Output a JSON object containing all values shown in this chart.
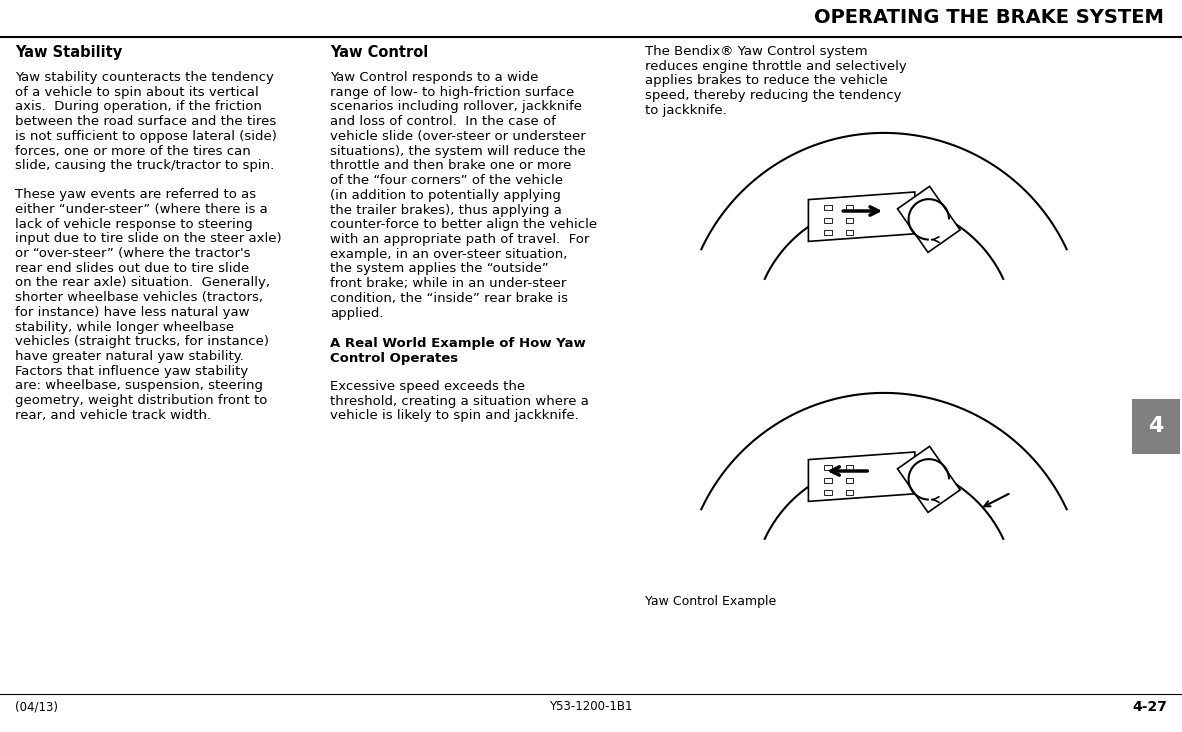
{
  "title": "OPERATING THE BRAKE SYSTEM",
  "background_color": "#ffffff",
  "header_line_color": "#000000",
  "title_color": "#000000",
  "title_fontsize": 14,
  "tab_color": "#808080",
  "tab_text": "4",
  "tab_text_color": "#ffffff",
  "footer_left": "(04/13)",
  "footer_center": "Y53-1200-1B1",
  "footer_right": "4-27",
  "col1_heading": "Yaw Stability",
  "col1_para1": "Yaw stability counteracts the tendency\nof a vehicle to spin about its vertical\naxis.  During operation, if the friction\nbetween the road surface and the tires\nis not sufficient to oppose lateral (side)\nforces, one or more of the tires can\nslide, causing the truck/tractor to spin.",
  "col1_para2": "These yaw events are referred to as\neither “under-steer” (where there is a\nlack of vehicle response to steering\ninput due to tire slide on the steer axle)\nor “over-steer” (where the tractor's\nrear end slides out due to tire slide\non the rear axle) situation.  Generally,\nshorter wheelbase vehicles (tractors,\nfor instance) have less natural yaw\nstability, while longer wheelbase\nvehicles (straight trucks, for instance)\nhave greater natural yaw stability.\nFactors that influence yaw stability\nare: wheelbase, suspension, steering\ngeometry, weight distribution front to\nrear, and vehicle track width.",
  "col2_heading": "Yaw Control",
  "col2_para1": "Yaw Control responds to a wide\nrange of low- to high-friction surface\nscenarios including rollover, jackknife\nand loss of control.  In the case of\nvehicle slide (over-steer or understeer\nsituations), the system will reduce the\nthrottle and then brake one or more\nof the “four corners” of the vehicle\n(in addition to potentially applying\nthe trailer brakes), thus applying a\ncounter-force to better align the vehicle\nwith an appropriate path of travel.  For\nexample, in an over-steer situation,\nthe system applies the “outside”\nfront brake; while in an under-steer\ncondition, the “inside” rear brake is\napplied.",
  "col2_subheading": "A Real World Example of How Yaw\nControl Operates",
  "col2_subpara": "Excessive speed exceeds the\nthreshold, creating a situation where a\nvehicle is likely to spin and jackknife.",
  "col3_para1": "The Bendix® Yaw Control system\nreduces engine throttle and selectively\napplies brakes to reduce the vehicle\nspeed, thereby reducing the tendency\nto jackknife.",
  "image_caption": "Yaw Control Example",
  "body_fontsize": 9.5,
  "heading_fontsize": 10.5,
  "subheading_fontsize": 10.0
}
